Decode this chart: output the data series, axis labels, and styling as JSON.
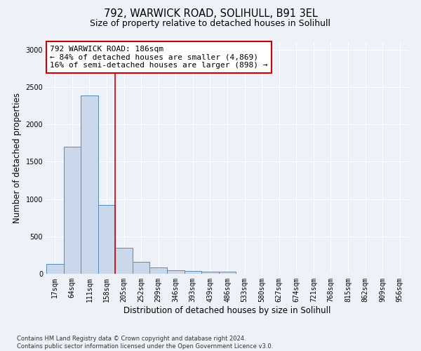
{
  "title1": "792, WARWICK ROAD, SOLIHULL, B91 3EL",
  "title2": "Size of property relative to detached houses in Solihull",
  "xlabel": "Distribution of detached houses by size in Solihull",
  "ylabel": "Number of detached properties",
  "bar_labels": [
    "17sqm",
    "64sqm",
    "111sqm",
    "158sqm",
    "205sqm",
    "252sqm",
    "299sqm",
    "346sqm",
    "393sqm",
    "439sqm",
    "486sqm",
    "533sqm",
    "580sqm",
    "627sqm",
    "674sqm",
    "721sqm",
    "768sqm",
    "815sqm",
    "862sqm",
    "909sqm",
    "956sqm"
  ],
  "bar_values": [
    130,
    1700,
    2390,
    920,
    350,
    160,
    80,
    50,
    35,
    30,
    25,
    0,
    0,
    0,
    0,
    0,
    0,
    0,
    0,
    0,
    0
  ],
  "bar_color": "#c9d9eb",
  "bar_edge_color": "#5a8ab8",
  "vline_x": 3.5,
  "vline_color": "#cc0000",
  "annotation_text": "792 WARWICK ROAD: 186sqm\n← 84% of detached houses are smaller (4,869)\n16% of semi-detached houses are larger (898) →",
  "annotation_box_color": "#ffffff",
  "annotation_box_edge": "#cc0000",
  "ylim": [
    0,
    3100
  ],
  "yticks": [
    0,
    500,
    1000,
    1500,
    2000,
    2500,
    3000
  ],
  "footnote": "Contains HM Land Registry data © Crown copyright and database right 2024.\nContains public sector information licensed under the Open Government Licence v3.0.",
  "bg_color": "#eef2f8",
  "grid_color": "#ffffff",
  "title_fontsize": 10.5,
  "subtitle_fontsize": 9,
  "axis_label_fontsize": 8.5,
  "tick_fontsize": 7,
  "annotation_fontsize": 8,
  "footnote_fontsize": 6
}
